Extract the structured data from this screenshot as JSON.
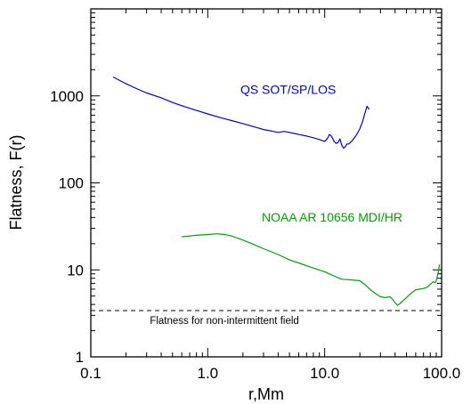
{
  "chart_data": {
    "type": "line",
    "title": "",
    "xlabel": "r,Mm",
    "ylabel": "Flatness, F(r)",
    "x_scale": "log",
    "y_scale": "log",
    "xlim": [
      0.1,
      100.0
    ],
    "ylim": [
      1,
      10000
    ],
    "x_ticks": [
      {
        "value": 0.1,
        "label": "0.1"
      },
      {
        "value": 1.0,
        "label": "1.0"
      },
      {
        "value": 10.0,
        "label": "10.0"
      },
      {
        "value": 100.0,
        "label": "100.0"
      }
    ],
    "y_ticks": [
      {
        "value": 1,
        "label": "1"
      },
      {
        "value": 10,
        "label": "10"
      },
      {
        "value": 100,
        "label": "100"
      },
      {
        "value": 1000,
        "label": "1000"
      }
    ],
    "grid": false,
    "series": [
      {
        "name": "QS  SOT/SP/LOS",
        "color": "#0000cc",
        "x": [
          0.155,
          0.2,
          0.25,
          0.3,
          0.4,
          0.5,
          0.6,
          0.8,
          1.0,
          1.3,
          1.6,
          2.0,
          2.5,
          3.0,
          3.5,
          4.0,
          4.5,
          5.0,
          5.5,
          6.0,
          7.0,
          8.0,
          9.0,
          10.0,
          10.5,
          11.0,
          11.5,
          12.0,
          12.5,
          13.0,
          13.5,
          14.0,
          14.5,
          15.0,
          15.5,
          16.0,
          17.0,
          18.0,
          19.0,
          20.0,
          21.0,
          22.0,
          23.0,
          24.0
        ],
        "y": [
          1650,
          1380,
          1200,
          1080,
          950,
          840,
          770,
          680,
          620,
          560,
          520,
          480,
          440,
          410,
          395,
          380,
          390,
          380,
          370,
          360,
          345,
          330,
          315,
          300,
          320,
          360,
          340,
          300,
          285,
          290,
          320,
          270,
          250,
          260,
          280,
          280,
          300,
          330,
          370,
          420,
          500,
          620,
          760,
          700
        ]
      },
      {
        "name": "NOAA AR 10656 MDI/HR",
        "color": "#00a000",
        "x": [
          0.6,
          0.7,
          0.8,
          1.0,
          1.2,
          1.4,
          1.6,
          2.0,
          2.5,
          3.0,
          4.0,
          5.0,
          6.0,
          8.0,
          10.0,
          12.0,
          14.0,
          16.0,
          18.0,
          20.0,
          22.0,
          25.0,
          28.0,
          30.0,
          33.0,
          36.0,
          38.0,
          40.0,
          42.0,
          45.0,
          50.0,
          55.0,
          60.0,
          65.0,
          70.0,
          75.0,
          80.0,
          85.0,
          88.0,
          90.0,
          93.0,
          96.0
        ],
        "y": [
          24,
          24.5,
          25,
          25.5,
          26,
          25.5,
          24.5,
          22,
          19.5,
          17.5,
          15,
          13,
          12,
          10.5,
          9.5,
          8.5,
          7.8,
          7.7,
          7.6,
          7.5,
          6.8,
          5.8,
          5.2,
          4.9,
          4.8,
          4.9,
          4.6,
          4.2,
          3.9,
          4.2,
          4.8,
          5.4,
          5.9,
          6.0,
          6.1,
          6.3,
          6.8,
          7.3,
          7.1,
          7.5,
          9.0,
          11.5
        ]
      }
    ],
    "reference_lines": [
      {
        "y": 3.4,
        "label": "Flatness for non-intermittent field",
        "style": "dashed",
        "color": "#000000"
      }
    ]
  }
}
